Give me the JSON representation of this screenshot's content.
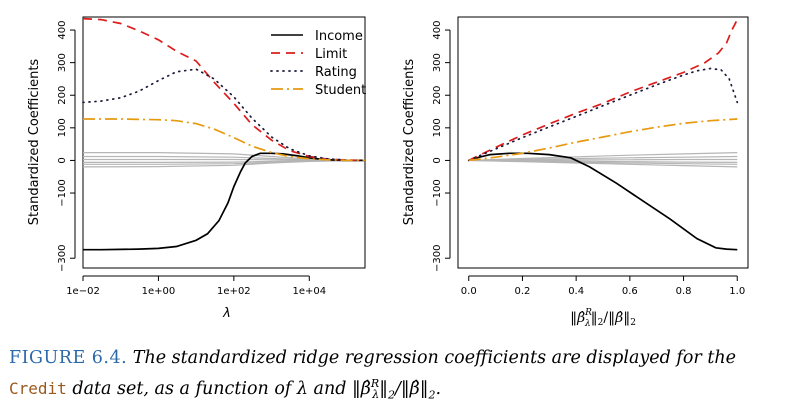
{
  "figure": {
    "caption_label": "FIGURE 6.4.",
    "caption_part1": "The standardized ridge regression coefficients are displayed for the",
    "caption_code": "Credit",
    "caption_part2": "data set, as a function of λ and ‖β̂",
    "caption_sup": "R",
    "caption_sub": "λ",
    "caption_part3": "‖",
    "caption_sub2": "2",
    "caption_part4": "/‖β̂‖",
    "caption_sub3": "2",
    "caption_part5": "."
  },
  "chart_data": [
    {
      "type": "line",
      "xlabel": "λ",
      "ylabel": "Standardized Coefficients",
      "x_scale": "log",
      "xlim": [
        0.01,
        300000
      ],
      "ylim": [
        -330,
        440
      ],
      "xticks": [
        0.01,
        1,
        100,
        10000
      ],
      "xtick_labels": [
        "1e−02",
        "1e+00",
        "1e+02",
        "1e+04"
      ],
      "yticks": [
        -300,
        -100,
        0,
        100,
        200,
        300,
        400
      ],
      "ytick_labels": [
        "−300",
        "−100",
        "0",
        "100",
        "200",
        "300",
        "400"
      ],
      "legend": {
        "position": "top-right",
        "entries": [
          "Income",
          "Limit",
          "Rating",
          "Student"
        ]
      },
      "series": [
        {
          "name": "Income",
          "color": "#000000",
          "dash": "",
          "x": [
            0.01,
            0.03,
            0.1,
            0.3,
            1,
            3,
            10,
            20,
            40,
            70,
            100,
            150,
            200,
            300,
            500,
            1000,
            2000,
            5000,
            10000,
            20000,
            50000,
            100000,
            300000
          ],
          "y": [
            -274,
            -274,
            -273,
            -272,
            -270,
            -264,
            -245,
            -225,
            -185,
            -130,
            -80,
            -35,
            -8,
            12,
            22,
            22,
            20,
            14,
            8,
            4,
            1,
            0,
            0
          ]
        },
        {
          "name": "Limit",
          "color": "#dd1c1c",
          "dash": "9,6",
          "x": [
            0.01,
            0.03,
            0.1,
            0.3,
            1,
            3,
            10,
            30,
            100,
            300,
            1000,
            3000,
            10000,
            30000,
            100000,
            300000
          ],
          "y": [
            435,
            432,
            420,
            398,
            370,
            335,
            305,
            240,
            175,
            110,
            62,
            30,
            12,
            4,
            1,
            0
          ]
        },
        {
          "name": "Rating",
          "color": "#1a1a3a",
          "dash": "1,5",
          "x": [
            0.01,
            0.03,
            0.1,
            0.3,
            1,
            3,
            10,
            30,
            100,
            300,
            1000,
            3000,
            10000,
            30000,
            100000,
            300000
          ],
          "y": [
            178,
            182,
            192,
            212,
            245,
            272,
            280,
            250,
            195,
            130,
            72,
            36,
            14,
            5,
            1,
            0
          ]
        },
        {
          "name": "Student",
          "color": "#e69a10",
          "dash": "12,4,2,4",
          "x": [
            0.01,
            0.03,
            0.1,
            0.3,
            1,
            3,
            10,
            30,
            100,
            300,
            1000,
            3000,
            10000,
            30000,
            100000,
            300000
          ],
          "y": [
            127,
            127,
            127,
            126,
            125,
            122,
            113,
            96,
            70,
            44,
            24,
            12,
            5,
            2,
            0,
            0
          ]
        },
        {
          "name": "",
          "color": "#b5b5b5",
          "dash": "",
          "x": [
            0.01,
            1,
            100,
            1000,
            10000,
            300000
          ],
          "y": [
            24,
            24,
            20,
            12,
            4,
            0
          ]
        },
        {
          "name": "",
          "color": "#b5b5b5",
          "dash": "",
          "x": [
            0.01,
            1,
            100,
            1000,
            10000,
            300000
          ],
          "y": [
            12,
            12,
            10,
            6,
            2,
            0
          ]
        },
        {
          "name": "",
          "color": "#b5b5b5",
          "dash": "",
          "x": [
            0.01,
            1,
            100,
            1000,
            10000,
            300000
          ],
          "y": [
            3,
            3,
            3,
            2,
            1,
            0
          ]
        },
        {
          "name": "",
          "color": "#b5b5b5",
          "dash": "",
          "x": [
            0.01,
            1,
            100,
            1000,
            10000,
            300000
          ],
          "y": [
            -6,
            -6,
            -5,
            -3,
            -1,
            0
          ]
        },
        {
          "name": "",
          "color": "#b5b5b5",
          "dash": "",
          "x": [
            0.01,
            1,
            100,
            1000,
            10000,
            300000
          ],
          "y": [
            -12,
            -12,
            -10,
            -6,
            -2,
            0
          ]
        },
        {
          "name": "",
          "color": "#b5b5b5",
          "dash": "",
          "x": [
            0.01,
            1,
            100,
            1000,
            10000,
            300000
          ],
          "y": [
            -20,
            -19,
            -15,
            -8,
            -3,
            0
          ]
        }
      ]
    },
    {
      "type": "line",
      "xlabel": "‖β̂^R_λ‖₂/‖β̂‖₂",
      "ylabel": "Standardized Coefficients",
      "x_scale": "linear",
      "xlim": [
        -0.04,
        1.04
      ],
      "ylim": [
        -330,
        440
      ],
      "xticks": [
        0,
        0.2,
        0.4,
        0.6,
        0.8,
        1
      ],
      "xtick_labels": [
        "0.0",
        "0.2",
        "0.4",
        "0.6",
        "0.8",
        "1.0"
      ],
      "yticks": [
        -300,
        -100,
        0,
        100,
        200,
        300,
        400
      ],
      "ytick_labels": [
        "−300",
        "−100",
        "0",
        "100",
        "200",
        "300",
        "400"
      ],
      "series": [
        {
          "name": "Income",
          "color": "#000000",
          "dash": "",
          "x": [
            0,
            0.03,
            0.08,
            0.15,
            0.22,
            0.3,
            0.38,
            0.45,
            0.55,
            0.65,
            0.75,
            0.85,
            0.92,
            0.96,
            1.0
          ],
          "y": [
            0,
            8,
            18,
            22,
            22,
            18,
            8,
            -20,
            -70,
            -125,
            -180,
            -240,
            -268,
            -272,
            -274
          ]
        },
        {
          "name": "Limit",
          "color": "#dd1c1c",
          "dash": "9,6",
          "x": [
            0,
            0.05,
            0.1,
            0.2,
            0.3,
            0.4,
            0.5,
            0.6,
            0.7,
            0.8,
            0.88,
            0.93,
            0.96,
            0.98,
            1.0
          ],
          "y": [
            0,
            20,
            40,
            78,
            112,
            145,
            175,
            210,
            240,
            270,
            300,
            330,
            360,
            400,
            432
          ]
        },
        {
          "name": "Rating",
          "color": "#1a1a3a",
          "dash": "1,5",
          "x": [
            0,
            0.05,
            0.1,
            0.2,
            0.3,
            0.4,
            0.5,
            0.6,
            0.7,
            0.8,
            0.85,
            0.9,
            0.94,
            0.97,
            1.0
          ],
          "y": [
            0,
            18,
            35,
            70,
            103,
            135,
            168,
            200,
            232,
            262,
            275,
            282,
            278,
            250,
            178
          ]
        },
        {
          "name": "Student",
          "color": "#e69a10",
          "dash": "12,4,2,4",
          "x": [
            0,
            0.1,
            0.2,
            0.3,
            0.4,
            0.5,
            0.6,
            0.7,
            0.8,
            0.9,
            1.0
          ],
          "y": [
            0,
            10,
            22,
            38,
            56,
            72,
            88,
            102,
            114,
            122,
            127
          ]
        },
        {
          "name": "",
          "color": "#b5b5b5",
          "dash": "",
          "x": [
            0,
            0.2,
            0.4,
            0.6,
            0.8,
            1.0
          ],
          "y": [
            0,
            6,
            11,
            16,
            20,
            24
          ]
        },
        {
          "name": "",
          "color": "#b5b5b5",
          "dash": "",
          "x": [
            0,
            0.2,
            0.4,
            0.6,
            0.8,
            1.0
          ],
          "y": [
            0,
            3,
            6,
            8,
            10,
            12
          ]
        },
        {
          "name": "",
          "color": "#b5b5b5",
          "dash": "",
          "x": [
            0,
            0.2,
            0.4,
            0.6,
            0.8,
            1.0
          ],
          "y": [
            0,
            1,
            2,
            2,
            3,
            3
          ]
        },
        {
          "name": "",
          "color": "#b5b5b5",
          "dash": "",
          "x": [
            0,
            0.2,
            0.4,
            0.6,
            0.8,
            1.0
          ],
          "y": [
            0,
            -1,
            -2,
            -4,
            -5,
            -6
          ]
        },
        {
          "name": "",
          "color": "#b5b5b5",
          "dash": "",
          "x": [
            0,
            0.2,
            0.4,
            0.6,
            0.8,
            1.0
          ],
          "y": [
            0,
            -3,
            -5,
            -8,
            -10,
            -12
          ]
        },
        {
          "name": "",
          "color": "#b5b5b5",
          "dash": "",
          "x": [
            0,
            0.2,
            0.4,
            0.6,
            0.8,
            1.0
          ],
          "y": [
            0,
            -4,
            -8,
            -12,
            -16,
            -20
          ]
        }
      ]
    }
  ]
}
